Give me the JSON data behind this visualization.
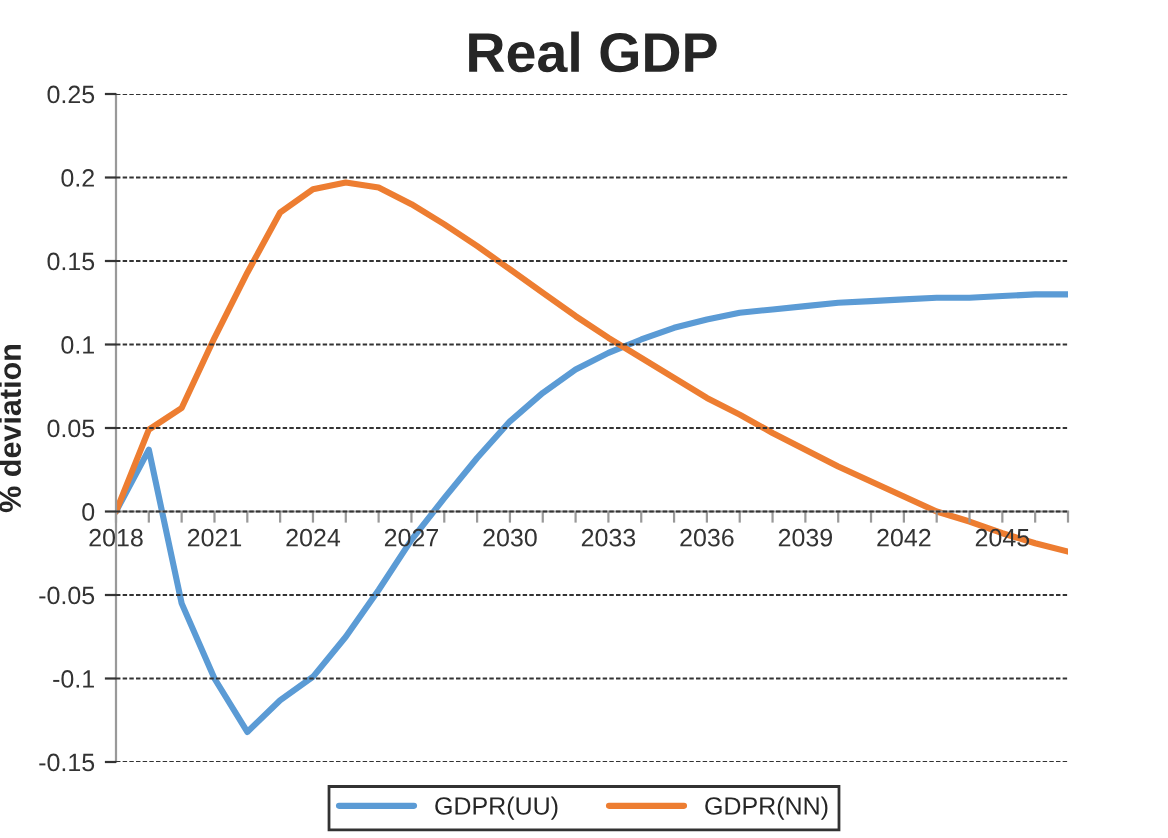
{
  "chart_data": {
    "type": "line",
    "title": "Real GDP",
    "ylabel": "% deviation",
    "x": [
      2018,
      2019,
      2020,
      2021,
      2022,
      2023,
      2024,
      2025,
      2026,
      2027,
      2028,
      2029,
      2030,
      2031,
      2032,
      2033,
      2034,
      2035,
      2036,
      2037,
      2038,
      2039,
      2040,
      2041,
      2042,
      2043,
      2044,
      2045,
      2046,
      2047
    ],
    "series": [
      {
        "name": "GDPR(UU)",
        "color": "#5b9bd5",
        "values": [
          0,
          0.037,
          -0.055,
          -0.1,
          -0.132,
          -0.113,
          -0.099,
          -0.075,
          -0.047,
          -0.017,
          0.008,
          0.032,
          0.054,
          0.071,
          0.085,
          0.095,
          0.103,
          0.11,
          0.115,
          0.119,
          0.121,
          0.123,
          0.125,
          0.126,
          0.127,
          0.128,
          0.128,
          0.129,
          0.13,
          0.13
        ]
      },
      {
        "name": "GDPR(NN)",
        "color": "#ed7d31",
        "values": [
          0,
          0.049,
          0.062,
          0.104,
          0.143,
          0.179,
          0.193,
          0.197,
          0.194,
          0.184,
          0.172,
          0.159,
          0.145,
          0.131,
          0.117,
          0.104,
          0.092,
          0.08,
          0.068,
          0.058,
          0.047,
          0.037,
          0.027,
          0.018,
          0.009,
          0.0,
          -0.006,
          -0.013,
          -0.019,
          -0.024
        ]
      }
    ],
    "xlim": [
      2018,
      2047
    ],
    "xticks": [
      2018,
      {
        "value": 2019,
        "label": null
      },
      {
        "value": 2020,
        "label": null
      },
      2021,
      {
        "value": 2022,
        "label": null
      },
      {
        "value": 2023,
        "label": null
      },
      2024,
      {
        "value": 2025,
        "label": null
      },
      {
        "value": 2026,
        "label": null
      },
      2027,
      {
        "value": 2028,
        "label": null
      },
      {
        "value": 2029,
        "label": null
      },
      2030,
      {
        "value": 2031,
        "label": null
      },
      {
        "value": 2032,
        "label": null
      },
      2033,
      {
        "value": 2034,
        "label": null
      },
      {
        "value": 2035,
        "label": null
      },
      2036,
      {
        "value": 2037,
        "label": null
      },
      {
        "value": 2038,
        "label": null
      },
      2039,
      {
        "value": 2040,
        "label": null
      },
      {
        "value": 2041,
        "label": null
      },
      2042,
      {
        "value": 2043,
        "label": null
      },
      {
        "value": 2044,
        "label": null
      },
      2045,
      {
        "value": 2046,
        "label": null
      },
      {
        "value": 2047,
        "label": null
      }
    ],
    "ylim": [
      -0.15,
      0.25
    ],
    "yticks": [
      {
        "value": -0.15,
        "label": "-0.15"
      },
      {
        "value": -0.1,
        "label": "-0.1"
      },
      {
        "value": -0.05,
        "label": "-0.05"
      },
      0,
      0.05,
      0.1,
      0.15,
      0.2,
      0.25
    ],
    "grid": "y",
    "legend": "bottom",
    "marker": "none",
    "line_style": "solid"
  }
}
